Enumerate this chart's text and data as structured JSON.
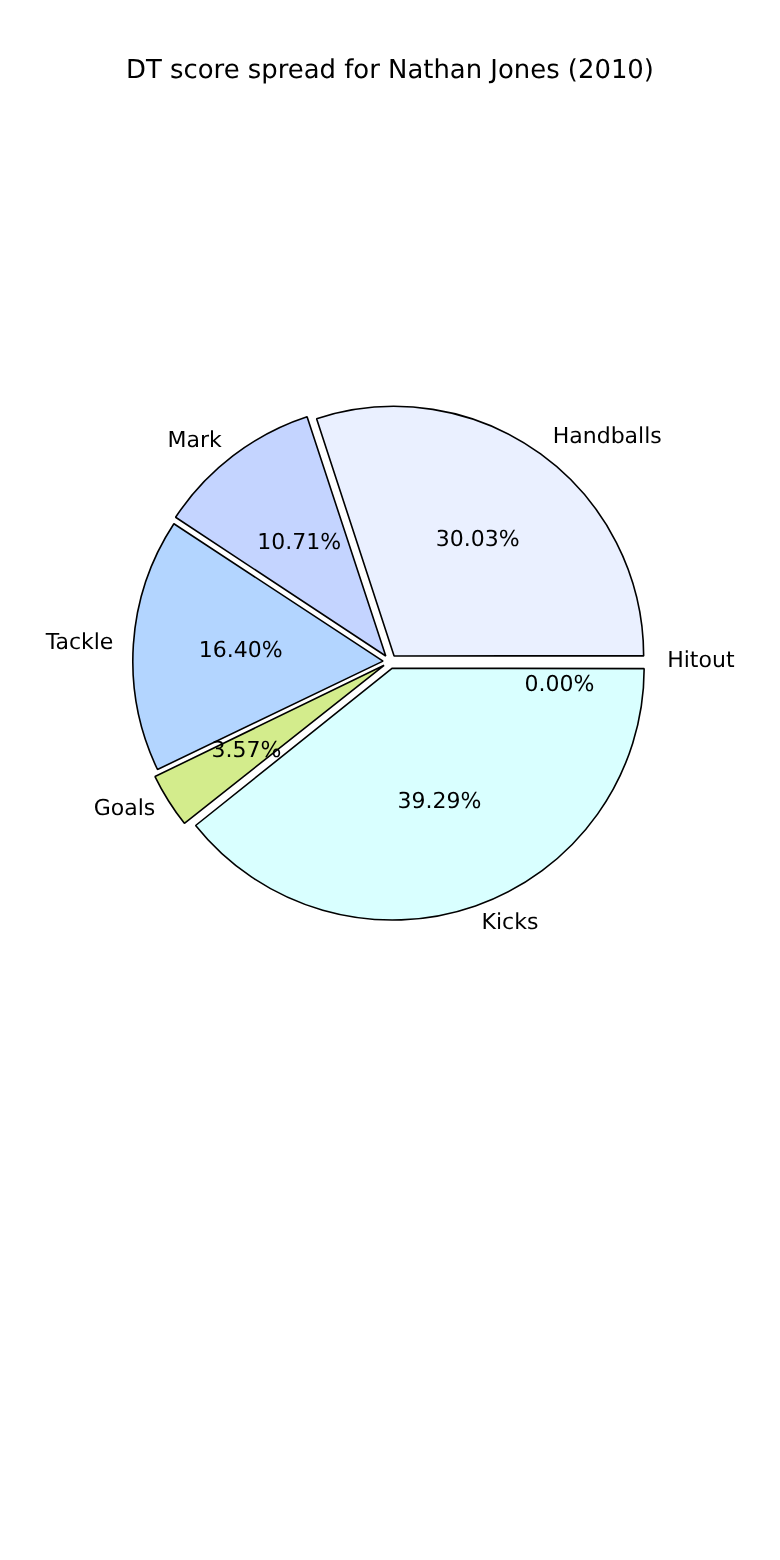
{
  "chart_data": {
    "type": "pie",
    "title": "DT score spread for Nathan Jones (2010)",
    "categories": [
      "Hitout",
      "Kicks",
      "Goals",
      "Tackle",
      "Mark",
      "Handballs"
    ],
    "values": [
      0.0,
      39.29,
      3.57,
      16.4,
      10.71,
      30.03
    ],
    "value_labels": [
      "0.00%",
      "39.29%",
      "3.57%",
      "16.40%",
      "10.71%",
      "30.03%"
    ],
    "colors": [
      "#ffffff",
      "#d9ffff",
      "#d3ec8c",
      "#b3d5ff",
      "#c4d4ff",
      "#eaf0ff"
    ],
    "legend": false
  }
}
